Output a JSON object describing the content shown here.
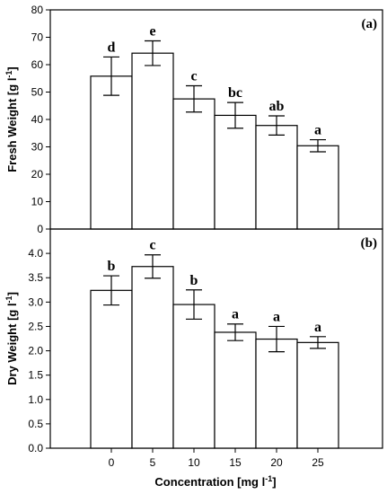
{
  "x_title": "Concentration [mg l",
  "x_title_sup": "-1",
  "x_title_end": "]",
  "chart_data": [
    {
      "type": "bar",
      "panel_label": "(a)",
      "categories": [
        "0",
        "5",
        "10",
        "15",
        "20",
        "25"
      ],
      "values": [
        55.8,
        64.2,
        47.5,
        41.5,
        37.8,
        30.4
      ],
      "errors": [
        7.0,
        4.5,
        4.8,
        4.7,
        3.5,
        2.2
      ],
      "letters": [
        "d",
        "e",
        "c",
        "bc",
        "ab",
        "a"
      ],
      "ylabel": "Fresh Weight [g l",
      "ylabel_sup": "-1",
      "ylabel_end": "]",
      "ylim": [
        0,
        80
      ],
      "yticks": [
        "0",
        "10",
        "20",
        "30",
        "40",
        "50",
        "60",
        "70",
        "80"
      ],
      "grid": false
    },
    {
      "type": "bar",
      "panel_label": "(b)",
      "categories": [
        "0",
        "5",
        "10",
        "15",
        "20",
        "25"
      ],
      "values": [
        3.24,
        3.73,
        2.95,
        2.38,
        2.24,
        2.17
      ],
      "errors": [
        0.3,
        0.24,
        0.3,
        0.17,
        0.26,
        0.12
      ],
      "letters": [
        "b",
        "c",
        "b",
        "a",
        "a",
        "a"
      ],
      "ylabel": "Dry Weight [g l",
      "ylabel_sup": "-1",
      "ylabel_end": "]",
      "ylim": [
        0,
        4.5
      ],
      "yticks": [
        "0.0",
        "0.5",
        "1.0",
        "1.5",
        "2.0",
        "2.5",
        "3.0",
        "3.5",
        "4.0"
      ],
      "grid": false
    }
  ]
}
